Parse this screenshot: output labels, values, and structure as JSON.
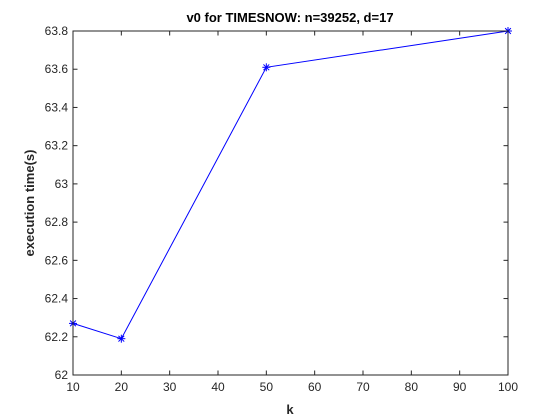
{
  "chart_data": {
    "type": "line",
    "title": "v0 for TIMESNOW: n=39252, d=17",
    "xlabel": "k",
    "ylabel": "execution time(s)",
    "xlim": [
      10,
      100
    ],
    "ylim": [
      62,
      63.8
    ],
    "xticks": [
      10,
      20,
      30,
      40,
      50,
      60,
      70,
      80,
      90,
      100
    ],
    "xtick_labels": [
      "10",
      "20",
      "30",
      "40",
      "50",
      "60",
      "70",
      "80",
      "90",
      "100"
    ],
    "yticks": [
      62,
      62.2,
      62.4,
      62.6,
      62.8,
      63,
      63.2,
      63.4,
      63.6,
      63.8
    ],
    "ytick_labels": [
      "62",
      "62.2",
      "62.4",
      "62.6",
      "62.8",
      "63",
      "63.2",
      "63.4",
      "63.6",
      "63.8"
    ],
    "grid": false,
    "series": [
      {
        "x": [
          10,
          20,
          50,
          100
        ],
        "y": [
          62.27,
          62.19,
          63.61,
          63.8
        ],
        "color": "#0000ff",
        "marker": "asterisk"
      }
    ]
  }
}
